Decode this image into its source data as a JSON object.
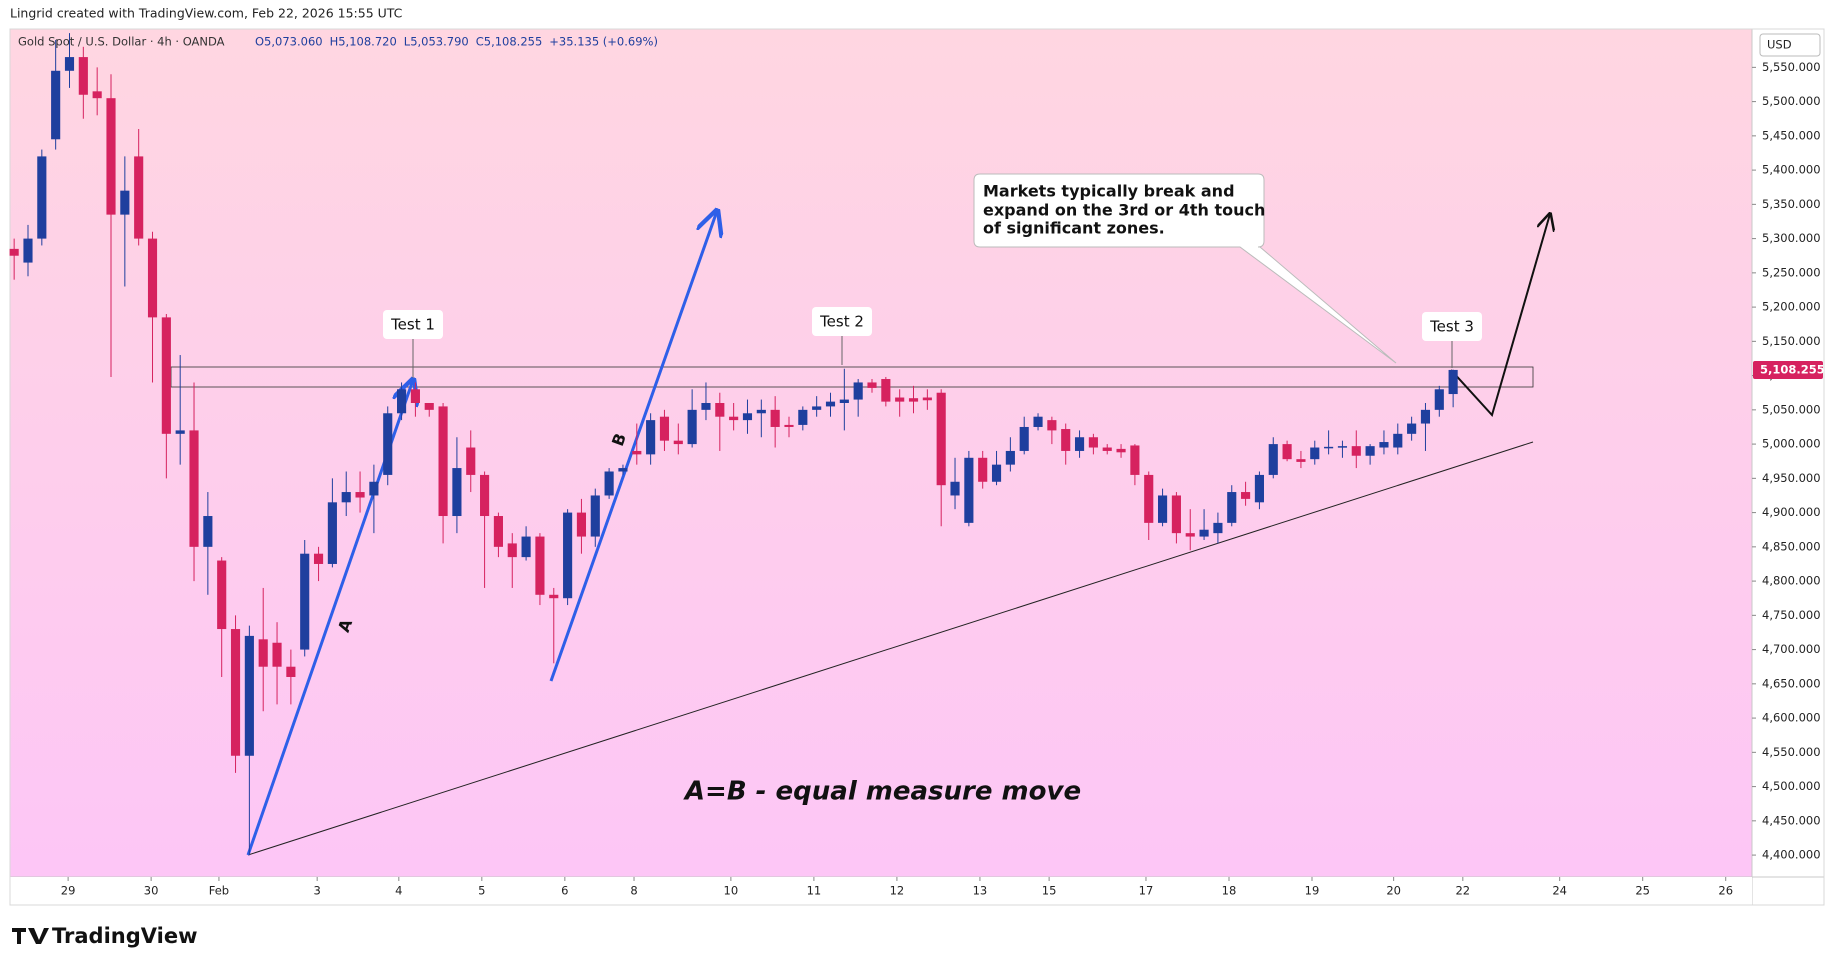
{
  "chart_data": {
    "type": "candlestick",
    "attribution": "Lingrid created with TradingView.com, Feb 22, 2026 15:55 UTC",
    "symbol": "Gold Spot / U.S. Dollar · 4h · OANDA",
    "ohlc_legend": [
      "O5,073.060",
      "H5,108.720",
      "L5,053.790",
      "C5,108.255",
      "+35.135 (+0.69%)"
    ],
    "currency": "USD",
    "brand": "TradingView",
    "up_color": "#1f3f9e",
    "down_color": "#d6225f",
    "last_price": {
      "value": 5108.255,
      "label": "5,108.255"
    },
    "ylim": [
      4368,
      5606
    ],
    "xlim": [
      -0.3,
      125.6
    ],
    "yticks": [
      {
        "value": 4400,
        "label": "4,400.000"
      },
      {
        "value": 4450,
        "label": "4,450.000"
      },
      {
        "value": 4500,
        "label": "4,500.000"
      },
      {
        "value": 4550,
        "label": "4,550.000"
      },
      {
        "value": 4600,
        "label": "4,600.000"
      },
      {
        "value": 4650,
        "label": "4,650.000"
      },
      {
        "value": 4700,
        "label": "4,700.000"
      },
      {
        "value": 4750,
        "label": "4,750.000"
      },
      {
        "value": 4800,
        "label": "4,800.000"
      },
      {
        "value": 4850,
        "label": "4,850.000"
      },
      {
        "value": 4900,
        "label": "4,900.000"
      },
      {
        "value": 4950,
        "label": "4,950.000"
      },
      {
        "value": 5000,
        "label": "5,000.000"
      },
      {
        "value": 5050,
        "label": "5,050.000"
      },
      {
        "value": 5100,
        "label": "5,100.000"
      },
      {
        "value": 5150,
        "label": "5,150.000"
      },
      {
        "value": 5200,
        "label": "5,200.000"
      },
      {
        "value": 5250,
        "label": "5,250.000"
      },
      {
        "value": 5300,
        "label": "5,300.000"
      },
      {
        "value": 5350,
        "label": "5,350.000"
      },
      {
        "value": 5400,
        "label": "5,400.000"
      },
      {
        "value": 5450,
        "label": "5,450.000"
      },
      {
        "value": 5500,
        "label": "5,500.000"
      },
      {
        "value": 5550,
        "label": "5,550.000"
      }
    ],
    "xticks": [
      {
        "value": 3.9,
        "label": "29"
      },
      {
        "value": 9.9,
        "label": "30"
      },
      {
        "value": 14.8,
        "label": "Feb"
      },
      {
        "value": 21.9,
        "label": "3"
      },
      {
        "value": 27.8,
        "label": "4"
      },
      {
        "value": 33.8,
        "label": "5"
      },
      {
        "value": 39.8,
        "label": "6"
      },
      {
        "value": 44.8,
        "label": "8"
      },
      {
        "value": 51.8,
        "label": "10"
      },
      {
        "value": 57.8,
        "label": "11"
      },
      {
        "value": 63.8,
        "label": "12"
      },
      {
        "value": 69.8,
        "label": "13"
      },
      {
        "value": 74.8,
        "label": "15"
      },
      {
        "value": 81.8,
        "label": "17"
      },
      {
        "value": 87.8,
        "label": "18"
      },
      {
        "value": 93.8,
        "label": "19"
      },
      {
        "value": 99.7,
        "label": "20"
      },
      {
        "value": 104.7,
        "label": "22"
      },
      {
        "value": 111.7,
        "label": "24"
      },
      {
        "value": 117.7,
        "label": "25"
      },
      {
        "value": 123.7,
        "label": "26"
      }
    ],
    "ohlc": [
      [
        5285,
        5300,
        5240,
        5275
      ],
      [
        5265,
        5320,
        5245,
        5300
      ],
      [
        5300,
        5430,
        5290,
        5420
      ],
      [
        5445,
        5590,
        5430,
        5545
      ],
      [
        5545,
        5600,
        5520,
        5565
      ],
      [
        5565,
        5580,
        5475,
        5510
      ],
      [
        5515,
        5550,
        5480,
        5505
      ],
      [
        5505,
        5540,
        5098,
        5335
      ],
      [
        5335,
        5420,
        5230,
        5370
      ],
      [
        5420,
        5460,
        5290,
        5300
      ],
      [
        5300,
        5310,
        5090,
        5185
      ],
      [
        5185,
        5190,
        4950,
        5015
      ],
      [
        5015,
        5130,
        4970,
        5020
      ],
      [
        5020,
        5090,
        4800,
        4850
      ],
      [
        4850,
        4930,
        4780,
        4895
      ],
      [
        4830,
        4835,
        4660,
        4730
      ],
      [
        4730,
        4750,
        4520,
        4545
      ],
      [
        4545,
        4735,
        4400,
        4720
      ],
      [
        4715,
        4790,
        4610,
        4675
      ],
      [
        4710,
        4740,
        4620,
        4675
      ],
      [
        4675,
        4700,
        4620,
        4660
      ],
      [
        4700,
        4860,
        4690,
        4840
      ],
      [
        4840,
        4850,
        4800,
        4825
      ],
      [
        4825,
        4950,
        4820,
        4915
      ],
      [
        4915,
        4960,
        4895,
        4930
      ],
      [
        4930,
        4960,
        4900,
        4922
      ],
      [
        4925,
        4970,
        4870,
        4945
      ],
      [
        4955,
        5055,
        4940,
        5045
      ],
      [
        5045,
        5090,
        5035,
        5080
      ],
      [
        5080,
        5090,
        5040,
        5060
      ],
      [
        5060,
        5060,
        5040,
        5050
      ],
      [
        5055,
        5060,
        4855,
        4895
      ],
      [
        4895,
        5010,
        4870,
        4965
      ],
      [
        4995,
        5020,
        4930,
        4955
      ],
      [
        4955,
        4960,
        4790,
        4895
      ],
      [
        4895,
        4900,
        4835,
        4850
      ],
      [
        4855,
        4870,
        4790,
        4835
      ],
      [
        4835,
        4880,
        4830,
        4865
      ],
      [
        4865,
        4870,
        4765,
        4780
      ],
      [
        4780,
        4790,
        4680,
        4775
      ],
      [
        4775,
        4905,
        4765,
        4900
      ],
      [
        4900,
        4920,
        4840,
        4865
      ],
      [
        4865,
        4935,
        4850,
        4925
      ],
      [
        4925,
        4965,
        4920,
        4960
      ],
      [
        4960,
        4970,
        4955,
        4965
      ],
      [
        4990,
        5030,
        4970,
        4985
      ],
      [
        4985,
        5045,
        4970,
        5035
      ],
      [
        5040,
        5050,
        4990,
        5005
      ],
      [
        5005,
        5030,
        4985,
        5000
      ],
      [
        5000,
        5080,
        4995,
        5050
      ],
      [
        5050,
        5090,
        5035,
        5060
      ],
      [
        5060,
        5075,
        4990,
        5040
      ],
      [
        5040,
        5060,
        5020,
        5035
      ],
      [
        5035,
        5065,
        5015,
        5045
      ],
      [
        5045,
        5065,
        5010,
        5050
      ],
      [
        5050,
        5070,
        4995,
        5025
      ],
      [
        5028,
        5040,
        5010,
        5025
      ],
      [
        5028,
        5055,
        5020,
        5050
      ],
      [
        5050,
        5070,
        5040,
        5055
      ],
      [
        5055,
        5075,
        5040,
        5062
      ],
      [
        5060,
        5110,
        5020,
        5065
      ],
      [
        5065,
        5095,
        5040,
        5090
      ],
      [
        5090,
        5095,
        5075,
        5082
      ],
      [
        5095,
        5098,
        5055,
        5062
      ],
      [
        5068,
        5080,
        5040,
        5062
      ],
      [
        5067,
        5085,
        5045,
        5062
      ],
      [
        5068,
        5080,
        5050,
        5064
      ],
      [
        5075,
        5080,
        4880,
        4940
      ],
      [
        4925,
        4980,
        4905,
        4945
      ],
      [
        4885,
        4990,
        4880,
        4980
      ],
      [
        4980,
        4990,
        4935,
        4945
      ],
      [
        4945,
        4990,
        4940,
        4970
      ],
      [
        4970,
        5010,
        4960,
        4990
      ],
      [
        4990,
        5040,
        4985,
        5025
      ],
      [
        5025,
        5045,
        5020,
        5040
      ],
      [
        5035,
        5040,
        5000,
        5020
      ],
      [
        5022,
        5030,
        4970,
        4990
      ],
      [
        4990,
        5020,
        4980,
        5010
      ],
      [
        5010,
        5015,
        4985,
        4995
      ],
      [
        4995,
        5000,
        4985,
        4990
      ],
      [
        4993,
        5000,
        4980,
        4988
      ],
      [
        4998,
        5000,
        4940,
        4955
      ],
      [
        4955,
        4960,
        4860,
        4885
      ],
      [
        4885,
        4935,
        4880,
        4925
      ],
      [
        4925,
        4930,
        4855,
        4870
      ],
      [
        4870,
        4905,
        4845,
        4865
      ],
      [
        4865,
        4905,
        4860,
        4875
      ],
      [
        4870,
        4900,
        4855,
        4885
      ],
      [
        4885,
        4940,
        4880,
        4930
      ],
      [
        4930,
        4945,
        4910,
        4920
      ],
      [
        4915,
        4960,
        4905,
        4955
      ],
      [
        4955,
        5010,
        4950,
        5000
      ],
      [
        5000,
        5005,
        4975,
        4978
      ],
      [
        4978,
        4990,
        4965,
        4974
      ],
      [
        4978,
        5005,
        4970,
        4995
      ],
      [
        4994,
        5020,
        4985,
        4996
      ],
      [
        4995,
        5005,
        4980,
        4997
      ],
      [
        4997,
        5020,
        4965,
        4983
      ],
      [
        4983,
        5000,
        4970,
        4997
      ],
      [
        4995,
        5020,
        4985,
        5003
      ],
      [
        4995,
        5030,
        4985,
        5015
      ],
      [
        5015,
        5040,
        5005,
        5030
      ],
      [
        5030,
        5060,
        4990,
        5050
      ],
      [
        5050,
        5085,
        5040,
        5080
      ],
      [
        5073.06,
        5108.72,
        5053.79,
        5108.255
      ]
    ],
    "annotations": {
      "tests": [
        "Test 1",
        "Test 2",
        "Test 3"
      ],
      "callout": [
        "Markets typically break and",
        "expand on the 3rd or 4th touch",
        "of significant zones."
      ],
      "leg_a": "A",
      "leg_b": "B",
      "caption": "A=B - equal measure move"
    }
  }
}
